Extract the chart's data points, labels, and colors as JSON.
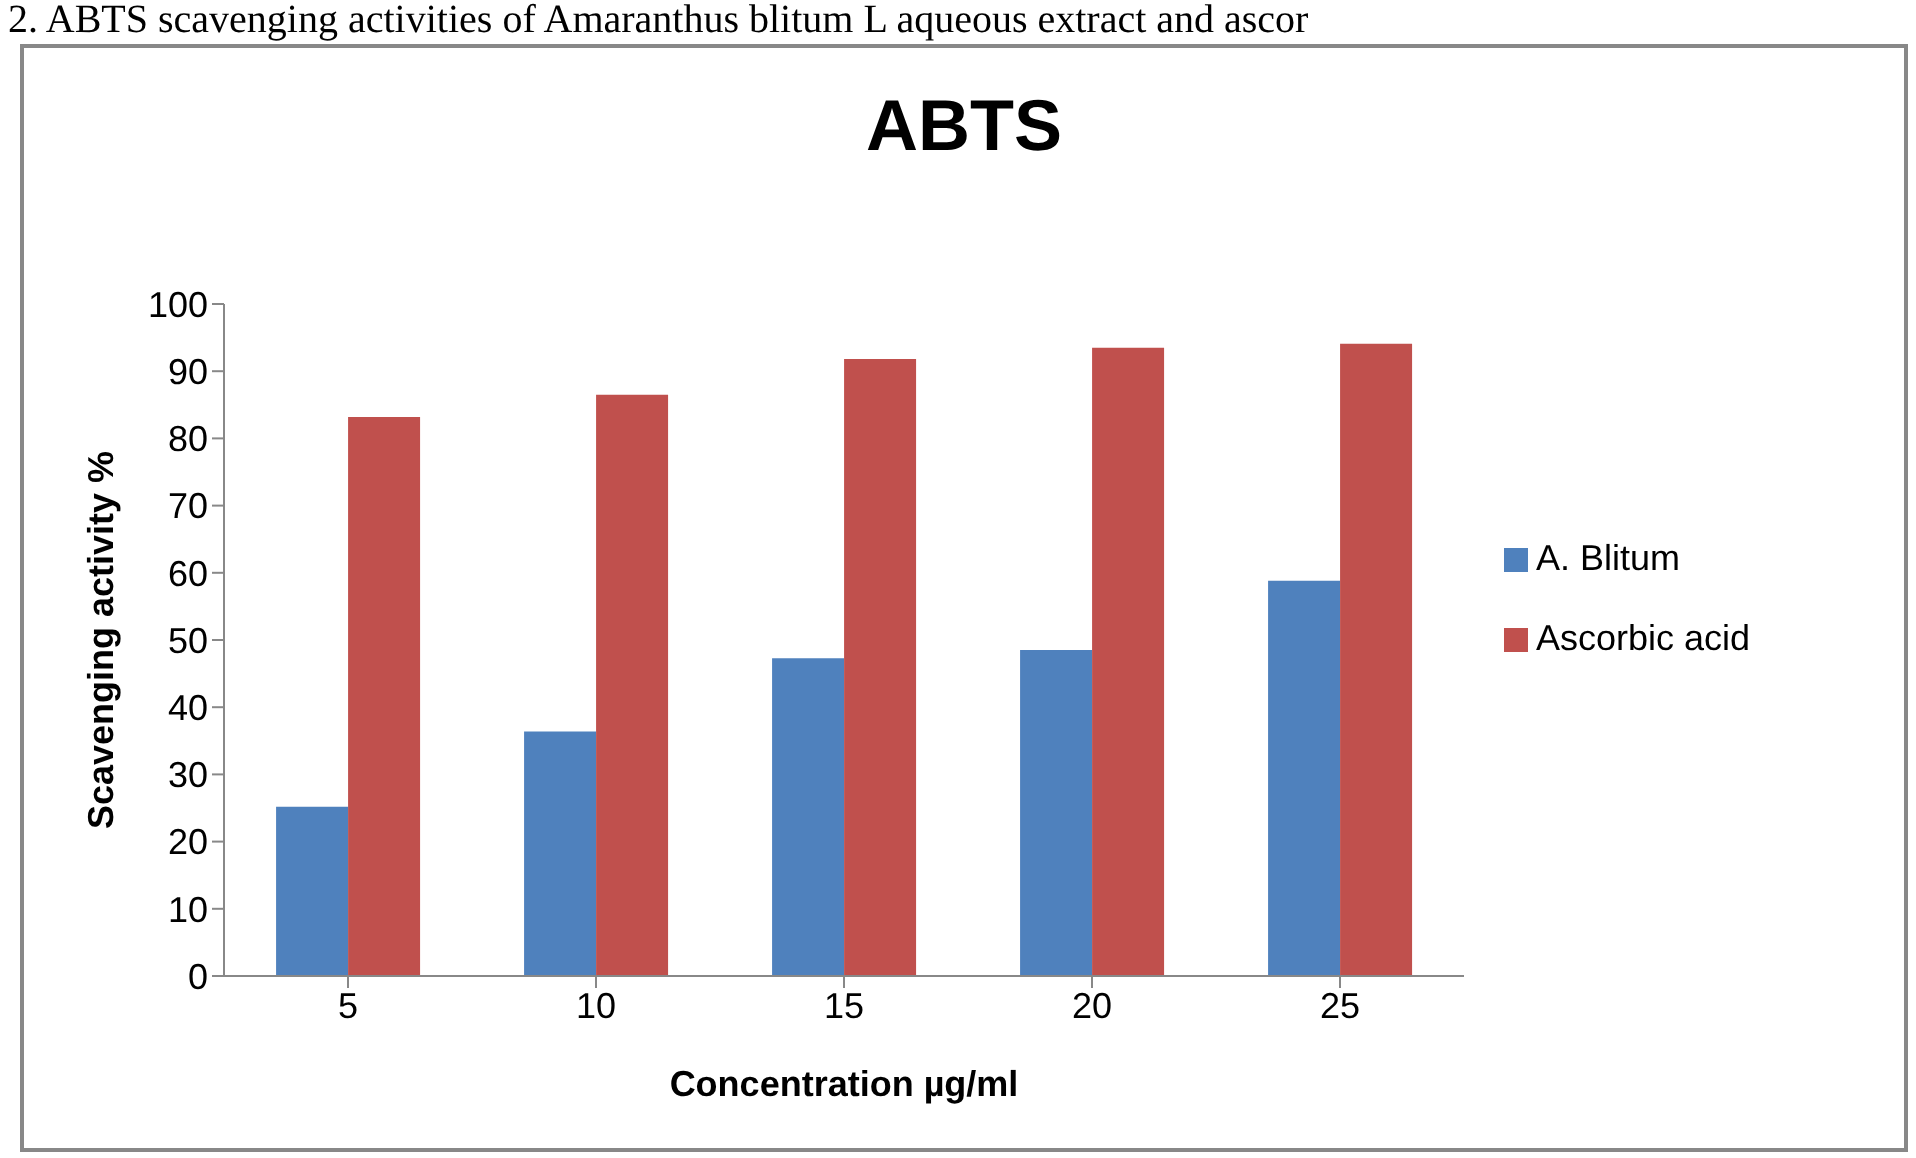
{
  "chart_data": {
    "type": "bar",
    "title": "ABTS",
    "xlabel": "Concentration µg/ml",
    "ylabel": "Scavenging activity %",
    "annotations": [
      "2. ABTS scavenging activities of Amaranthus blitum L aqueous extract and ascor"
    ],
    "categories": [
      "5",
      "10",
      "15",
      "20",
      "25"
    ],
    "series": [
      {
        "name": "A. Blitum",
        "color": "#4f81bd",
        "values": [
          25.2,
          36.4,
          47.3,
          48.5,
          58.8
        ]
      },
      {
        "name": "Ascorbic acid",
        "color": "#c0504d",
        "values": [
          83.2,
          86.5,
          91.8,
          93.5,
          94.1
        ]
      }
    ],
    "ylim": [
      0,
      100
    ],
    "yticks": [
      0,
      10,
      20,
      30,
      40,
      50,
      60,
      70,
      80,
      90,
      100
    ],
    "grid": false,
    "legend": "right"
  }
}
